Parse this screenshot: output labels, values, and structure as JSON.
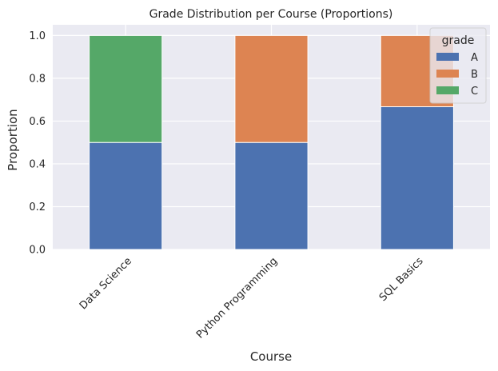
{
  "chart_data": {
    "type": "bar",
    "stacked": true,
    "title": "Grade Distribution per Course (Proportions)",
    "xlabel": "Course",
    "ylabel": "Proportion",
    "ylim": [
      0,
      1.05
    ],
    "yticks": [
      0.0,
      0.2,
      0.4,
      0.6,
      0.8,
      1.0
    ],
    "ytick_labels": [
      "0.0",
      "0.2",
      "0.4",
      "0.6",
      "0.8",
      "1.0"
    ],
    "categories": [
      "Data Science",
      "Python Programming",
      "SQL Basics"
    ],
    "series": [
      {
        "name": "A",
        "values": [
          0.5,
          0.5,
          0.667
        ],
        "color": "#4c72b0"
      },
      {
        "name": "B",
        "values": [
          0.0,
          0.5,
          0.333
        ],
        "color": "#dd8452"
      },
      {
        "name": "C",
        "values": [
          0.5,
          0.0,
          0.0
        ],
        "color": "#55a868"
      }
    ],
    "legend": {
      "title": "grade",
      "position": "top-right"
    },
    "grid": true,
    "background": "#eaeaf2",
    "grid_color": "#ffffff"
  }
}
